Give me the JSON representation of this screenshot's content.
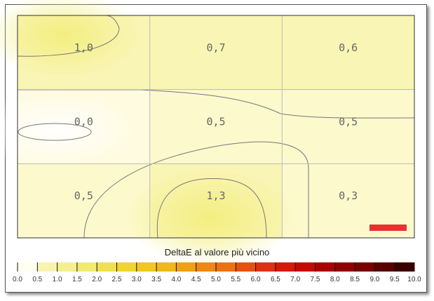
{
  "chart_data": {
    "type": "heatmap",
    "title": "DeltaE al valore più vicino",
    "grid": true,
    "rows": 3,
    "cols": 3,
    "cell_labels": [
      [
        "1,0",
        "0,7",
        "0,6"
      ],
      [
        "0,0",
        "0,5",
        "0,5"
      ],
      [
        "0,5",
        "1,3",
        "0,3"
      ]
    ],
    "values": [
      [
        1.0,
        0.7,
        0.6
      ],
      [
        0.0,
        0.5,
        0.5
      ],
      [
        0.5,
        1.3,
        0.3
      ]
    ],
    "colorbar": {
      "min": 0,
      "max": 10,
      "step": 0.5,
      "tick_labels": [
        "0.0",
        "0.5",
        "1.0",
        "1.5",
        "2.0",
        "2.5",
        "3.0",
        "3.5",
        "4.0",
        "4.5",
        "5.0",
        "5.5",
        "6.0",
        "6.5",
        "7.0",
        "7.5",
        "8.0",
        "8.5",
        "9.0",
        "9.5",
        "10.0"
      ],
      "colors": [
        "#fffff0",
        "#f8f4b0",
        "#f5ef90",
        "#f3ea70",
        "#f0e050",
        "#f0d530",
        "#f0c820",
        "#f0b818",
        "#f0a010",
        "#f08810",
        "#f07010",
        "#e85010",
        "#e03010",
        "#d81808",
        "#c80800",
        "#a80000",
        "#900000",
        "#780000",
        "#580000",
        "#380000"
      ]
    },
    "accent_marker_color": "#e83030"
  }
}
